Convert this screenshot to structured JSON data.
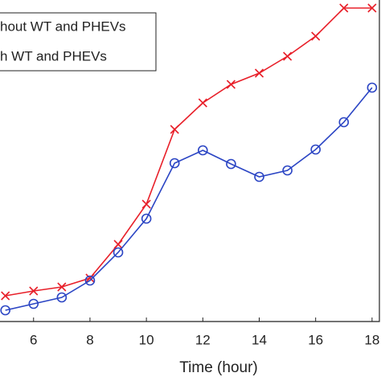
{
  "chart_data": {
    "type": "line",
    "x_label": "Time (hour)",
    "x": [
      5,
      6,
      7,
      8,
      9,
      10,
      11,
      12,
      13,
      14,
      15,
      16,
      17,
      18
    ],
    "series": [
      {
        "name": "hout WT and PHEVs",
        "color": "#e8202a",
        "marker": "x",
        "values": [
          32,
          38,
          43,
          54,
          96,
          146,
          239,
          272,
          295,
          309,
          330,
          355,
          390,
          390
        ]
      },
      {
        "name": "h WT and PHEVs",
        "color": "#2b45c4",
        "marker": "o",
        "values": [
          14,
          22,
          30,
          51,
          86,
          128,
          197,
          213,
          196,
          180,
          188,
          214,
          248,
          291
        ]
      }
    ],
    "xlim": [
      4.81,
      18.26
    ],
    "ylim": [
      0,
      400
    ],
    "xticks": [
      6,
      8,
      10,
      12,
      14,
      16,
      18
    ]
  }
}
